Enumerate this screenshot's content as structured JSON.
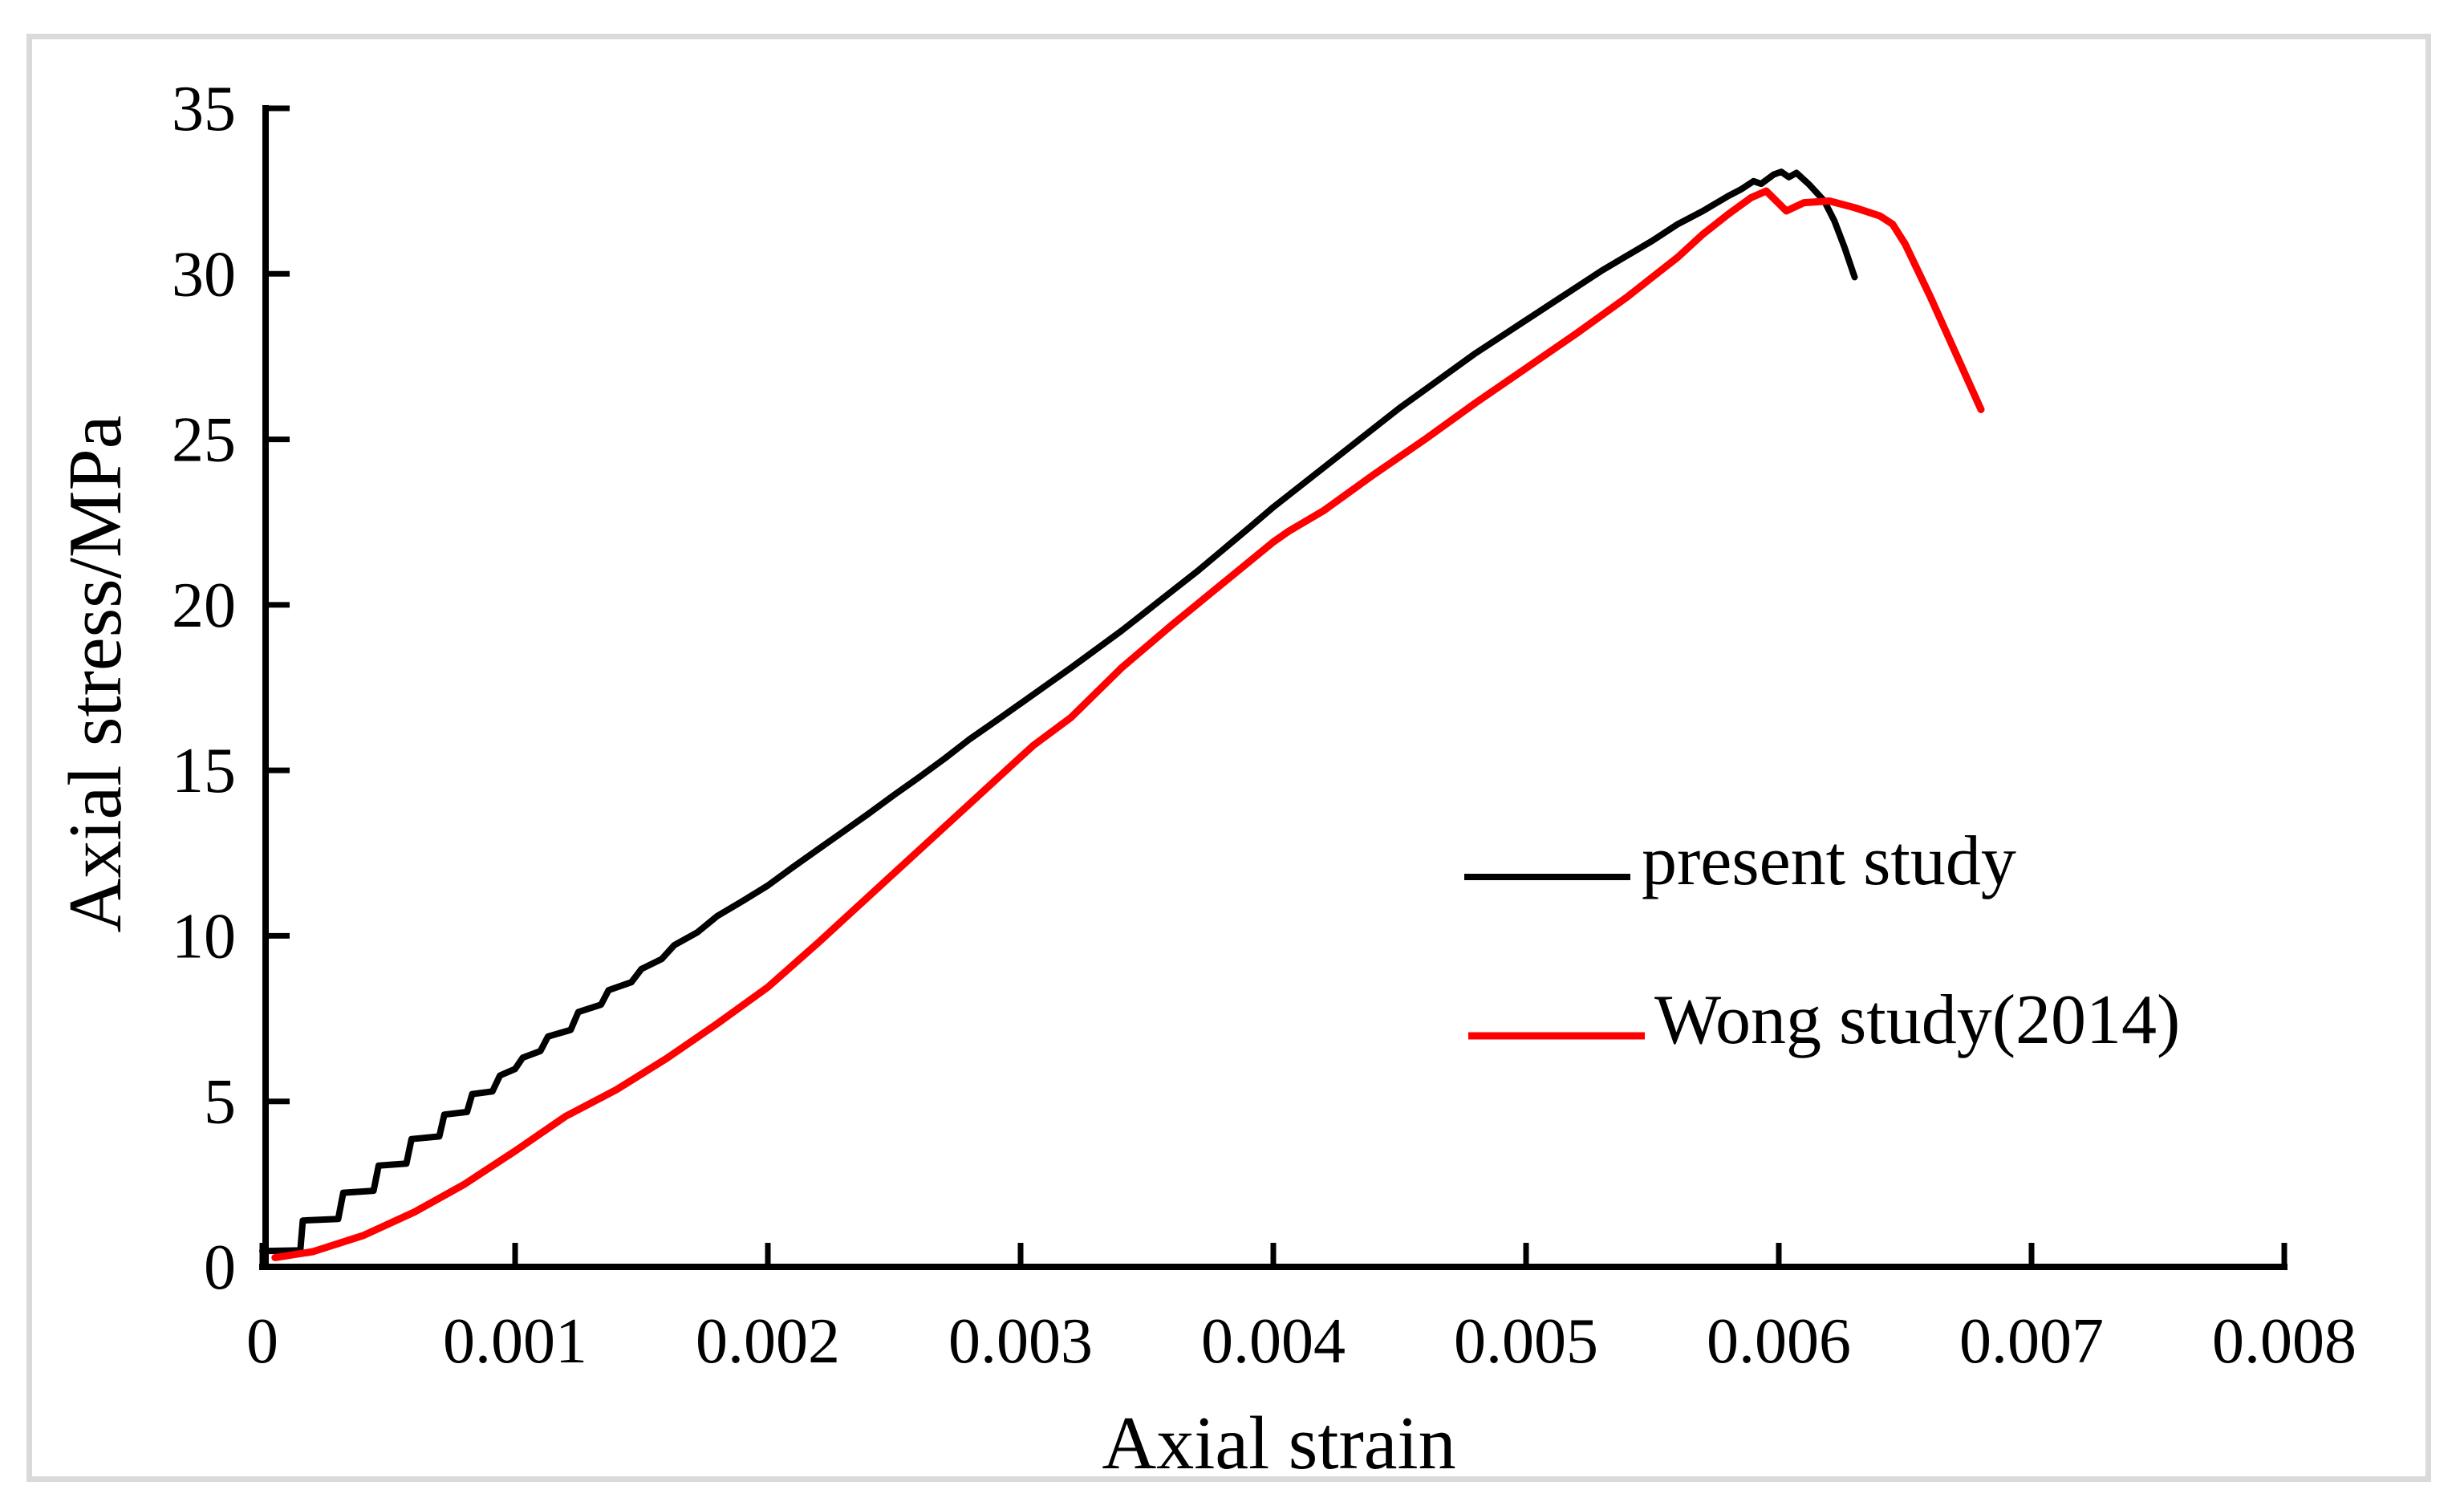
{
  "figure": {
    "background_color": "#FFFFFF",
    "border_color": "#DADADA",
    "axis_color": "#000000",
    "text_color": "#000000"
  },
  "chart_data": {
    "type": "line",
    "title": "",
    "xlabel": "Axial strain",
    "ylabel": "Axial stress/MPa",
    "xlim": [
      0,
      0.008
    ],
    "ylim": [
      0,
      35
    ],
    "grid": false,
    "legend_position": "inside-right-middle",
    "x_tick_values": [
      0,
      0.001,
      0.002,
      0.003,
      0.004,
      0.005,
      0.006,
      0.007,
      0.008
    ],
    "x_tick_labels": [
      "0",
      "0.001",
      "0.002",
      "0.003",
      "0.004",
      "0.005",
      "0.006",
      "0.007",
      "0.008"
    ],
    "y_tick_values": [
      0,
      5,
      10,
      15,
      20,
      25,
      30,
      35
    ],
    "y_tick_labels": [
      "0",
      "5",
      "10",
      "15",
      "20",
      "25",
      "30",
      "35"
    ],
    "series": [
      {
        "name": "present study",
        "color": "#000000",
        "line_width": 8,
        "points": [
          [
            0.0,
            0.48
          ],
          [
            0.00015,
            0.5
          ],
          [
            0.00016,
            1.4
          ],
          [
            0.0003,
            1.45
          ],
          [
            0.00032,
            2.24
          ],
          [
            0.00044,
            2.3
          ],
          [
            0.00046,
            3.06
          ],
          [
            0.00057,
            3.12
          ],
          [
            0.00059,
            3.86
          ],
          [
            0.0007,
            3.94
          ],
          [
            0.00072,
            4.6
          ],
          [
            0.00081,
            4.68
          ],
          [
            0.00083,
            5.22
          ],
          [
            0.00091,
            5.3
          ],
          [
            0.00094,
            5.78
          ],
          [
            0.001,
            5.98
          ],
          [
            0.00103,
            6.32
          ],
          [
            0.0011,
            6.52
          ],
          [
            0.00113,
            6.96
          ],
          [
            0.00122,
            7.16
          ],
          [
            0.00125,
            7.7
          ],
          [
            0.00134,
            7.92
          ],
          [
            0.00137,
            8.36
          ],
          [
            0.00146,
            8.6
          ],
          [
            0.0015,
            9.0
          ],
          [
            0.00158,
            9.3
          ],
          [
            0.00163,
            9.72
          ],
          [
            0.00172,
            10.1
          ],
          [
            0.0018,
            10.6
          ],
          [
            0.0019,
            11.05
          ],
          [
            0.002,
            11.52
          ],
          [
            0.0021,
            12.08
          ],
          [
            0.0022,
            12.62
          ],
          [
            0.0023,
            13.16
          ],
          [
            0.0024,
            13.7
          ],
          [
            0.0025,
            14.26
          ],
          [
            0.0026,
            14.8
          ],
          [
            0.0027,
            15.36
          ],
          [
            0.0028,
            15.95
          ],
          [
            0.0029,
            16.48
          ],
          [
            0.003,
            17.02
          ],
          [
            0.0031,
            17.56
          ],
          [
            0.0032,
            18.1
          ],
          [
            0.0033,
            18.66
          ],
          [
            0.0034,
            19.22
          ],
          [
            0.0035,
            19.82
          ],
          [
            0.0036,
            20.42
          ],
          [
            0.0037,
            21.02
          ],
          [
            0.0038,
            21.66
          ],
          [
            0.0039,
            22.3
          ],
          [
            0.004,
            22.95
          ],
          [
            0.0041,
            23.55
          ],
          [
            0.0042,
            24.15
          ],
          [
            0.0043,
            24.75
          ],
          [
            0.0044,
            25.35
          ],
          [
            0.0045,
            25.95
          ],
          [
            0.0046,
            26.5
          ],
          [
            0.0047,
            27.05
          ],
          [
            0.0048,
            27.6
          ],
          [
            0.0049,
            28.1
          ],
          [
            0.005,
            28.6
          ],
          [
            0.0051,
            29.1
          ],
          [
            0.0052,
            29.6
          ],
          [
            0.0053,
            30.1
          ],
          [
            0.0054,
            30.55
          ],
          [
            0.0055,
            31.0
          ],
          [
            0.0056,
            31.5
          ],
          [
            0.0057,
            31.9
          ],
          [
            0.0058,
            32.35
          ],
          [
            0.00585,
            32.55
          ],
          [
            0.0059,
            32.8
          ],
          [
            0.00593,
            32.72
          ],
          [
            0.00598,
            33.0
          ],
          [
            0.00601,
            33.08
          ],
          [
            0.00604,
            32.92
          ],
          [
            0.00607,
            33.05
          ],
          [
            0.00612,
            32.7
          ],
          [
            0.00618,
            32.2
          ],
          [
            0.00622,
            31.6
          ],
          [
            0.00626,
            30.8
          ],
          [
            0.0063,
            29.9
          ]
        ]
      },
      {
        "name": "Wong study(2014)",
        "color": "#FF0000",
        "line_width": 9,
        "points": [
          [
            5e-05,
            0.28
          ],
          [
            0.0002,
            0.46
          ],
          [
            0.0004,
            0.95
          ],
          [
            0.0006,
            1.65
          ],
          [
            0.0008,
            2.5
          ],
          [
            0.001,
            3.5
          ],
          [
            0.0012,
            4.55
          ],
          [
            0.0014,
            5.35
          ],
          [
            0.0016,
            6.3
          ],
          [
            0.0018,
            7.35
          ],
          [
            0.002,
            8.45
          ],
          [
            0.0022,
            9.8
          ],
          [
            0.0024,
            11.2
          ],
          [
            0.0026,
            12.6
          ],
          [
            0.0028,
            14.0
          ],
          [
            0.003,
            15.4
          ],
          [
            0.00305,
            15.75
          ],
          [
            0.0032,
            16.6
          ],
          [
            0.0034,
            18.1
          ],
          [
            0.0036,
            19.4
          ],
          [
            0.0038,
            20.65
          ],
          [
            0.004,
            21.9
          ],
          [
            0.00406,
            22.22
          ],
          [
            0.0042,
            22.85
          ],
          [
            0.0044,
            23.95
          ],
          [
            0.0046,
            25.0
          ],
          [
            0.0048,
            26.1
          ],
          [
            0.005,
            27.15
          ],
          [
            0.0052,
            28.2
          ],
          [
            0.0054,
            29.3
          ],
          [
            0.0055,
            29.9
          ],
          [
            0.0056,
            30.5
          ],
          [
            0.0057,
            31.2
          ],
          [
            0.0058,
            31.8
          ],
          [
            0.00589,
            32.3
          ],
          [
            0.00595,
            32.5
          ],
          [
            0.00603,
            31.9
          ],
          [
            0.0061,
            32.15
          ],
          [
            0.0062,
            32.2
          ],
          [
            0.0063,
            32.0
          ],
          [
            0.0064,
            31.75
          ],
          [
            0.00645,
            31.5
          ],
          [
            0.0065,
            30.9
          ],
          [
            0.0066,
            29.3
          ],
          [
            0.0067,
            27.6
          ],
          [
            0.0068,
            25.9
          ]
        ]
      }
    ]
  }
}
